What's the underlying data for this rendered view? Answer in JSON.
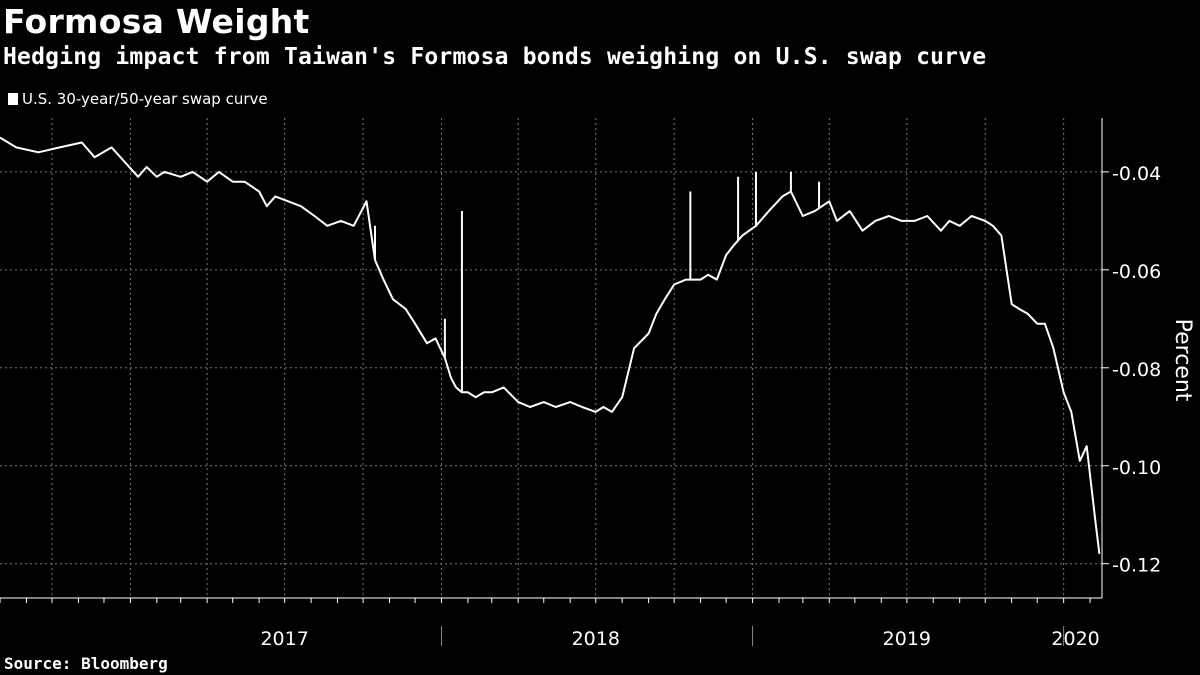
{
  "header": {
    "title": "Formosa Weight",
    "subtitle": "Hedging impact from Taiwan's Formosa bonds weighing on U.S. swap curve"
  },
  "source": "Source: Bloomberg",
  "colors": {
    "background": "#000000",
    "line": "#ffffff",
    "grid": "#777777"
  },
  "chart_data": {
    "type": "line",
    "title": "Formosa Weight",
    "subtitle": "Hedging impact from Taiwan's Formosa bonds weighing on U.S. swap curve",
    "xlabel": "",
    "ylabel": "Percent",
    "legend": "top-left",
    "grid": true,
    "ylim": [
      -0.127,
      -0.029
    ],
    "y_ticks": [
      -0.04,
      -0.06,
      -0.08,
      -0.1,
      -0.12
    ],
    "y_tick_labels": [
      "-0.04",
      "-0.06",
      "-0.08",
      "-0.10",
      "-0.12"
    ],
    "x_range": [
      "2016-08-01",
      "2020-02-15"
    ],
    "year_labels": [
      {
        "label": "2017",
        "x": "2017-07-01"
      },
      {
        "label": "2018",
        "x": "2018-07-01"
      },
      {
        "label": "2019",
        "x": "2019-07-01"
      },
      {
        "label": "2020",
        "x": "2020-01-15"
      }
    ],
    "year_separators": [
      "2018-01-01",
      "2019-01-01",
      "2020-01-01"
    ],
    "series": [
      {
        "name": "U.S. 30-year/50-year swap curve",
        "x": [
          "2016-08-01",
          "2016-08-20",
          "2016-09-15",
          "2016-10-10",
          "2016-11-05",
          "2016-11-20",
          "2016-12-10",
          "2017-01-10",
          "2017-01-20",
          "2017-02-01",
          "2017-02-10",
          "2017-03-01",
          "2017-03-15",
          "2017-04-01",
          "2017-04-15",
          "2017-05-01",
          "2017-05-15",
          "2017-06-01",
          "2017-06-10",
          "2017-06-20",
          "2017-07-05",
          "2017-07-20",
          "2017-08-05",
          "2017-08-20",
          "2017-09-05",
          "2017-09-20",
          "2017-10-05",
          "2017-10-15",
          "2017-10-25",
          "2017-11-05",
          "2017-11-20",
          "2017-12-01",
          "2017-12-15",
          "2017-12-25",
          "2018-01-05",
          "2018-01-12",
          "2018-01-18",
          "2018-01-25",
          "2018-02-01",
          "2018-02-10",
          "2018-02-20",
          "2018-03-01",
          "2018-03-15",
          "2018-04-01",
          "2018-04-15",
          "2018-05-01",
          "2018-05-15",
          "2018-06-01",
          "2018-06-15",
          "2018-07-01",
          "2018-07-10",
          "2018-07-20",
          "2018-08-01",
          "2018-08-15",
          "2018-09-01",
          "2018-09-10",
          "2018-09-20",
          "2018-10-01",
          "2018-10-15",
          "2018-11-01",
          "2018-11-10",
          "2018-11-20",
          "2018-12-01",
          "2018-12-10",
          "2018-12-20",
          "2019-01-05",
          "2019-01-20",
          "2019-02-05",
          "2019-02-15",
          "2019-03-01",
          "2019-03-15",
          "2019-04-01",
          "2019-04-10",
          "2019-04-25",
          "2019-05-10",
          "2019-05-25",
          "2019-06-10",
          "2019-06-25",
          "2019-07-10",
          "2019-07-25",
          "2019-08-10",
          "2019-08-20",
          "2019-09-01",
          "2019-09-15",
          "2019-10-01",
          "2019-10-10",
          "2019-10-20",
          "2019-11-01",
          "2019-11-10",
          "2019-11-20",
          "2019-12-01",
          "2019-12-10",
          "2019-12-20",
          "2020-01-01",
          "2020-01-10",
          "2020-01-20",
          "2020-01-28",
          "2020-02-03",
          "2020-02-07",
          "2020-02-12"
        ],
        "y": [
          -0.033,
          -0.035,
          -0.036,
          -0.035,
          -0.034,
          -0.037,
          -0.035,
          -0.041,
          -0.039,
          -0.041,
          -0.04,
          -0.041,
          -0.04,
          -0.042,
          -0.04,
          -0.042,
          -0.042,
          -0.044,
          -0.047,
          -0.045,
          -0.046,
          -0.047,
          -0.049,
          -0.051,
          -0.05,
          -0.051,
          -0.046,
          -0.058,
          -0.062,
          -0.066,
          -0.068,
          -0.071,
          -0.075,
          -0.074,
          -0.078,
          -0.082,
          -0.084,
          -0.085,
          -0.085,
          -0.086,
          -0.085,
          -0.085,
          -0.084,
          -0.087,
          -0.088,
          -0.087,
          -0.088,
          -0.087,
          -0.088,
          -0.089,
          -0.088,
          -0.089,
          -0.086,
          -0.076,
          -0.073,
          -0.069,
          -0.066,
          -0.063,
          -0.062,
          -0.062,
          -0.061,
          -0.062,
          -0.057,
          -0.055,
          -0.053,
          -0.051,
          -0.048,
          -0.045,
          -0.044,
          -0.049,
          -0.048,
          -0.046,
          -0.05,
          -0.048,
          -0.052,
          -0.05,
          -0.049,
          -0.05,
          -0.05,
          -0.049,
          -0.052,
          -0.05,
          -0.051,
          -0.049,
          -0.05,
          -0.051,
          -0.053,
          -0.067,
          -0.068,
          -0.069,
          -0.071,
          -0.071,
          -0.076,
          -0.085,
          -0.089,
          -0.099,
          -0.096,
          -0.105,
          -0.111,
          -0.118
        ]
      }
    ],
    "spikes": [
      {
        "x": "2017-10-15",
        "y": -0.051
      },
      {
        "x": "2018-01-05",
        "y": -0.07
      },
      {
        "x": "2018-01-25",
        "y": -0.048
      },
      {
        "x": "2018-10-20",
        "y": -0.044
      },
      {
        "x": "2018-12-15",
        "y": -0.041
      },
      {
        "x": "2019-01-05",
        "y": -0.04
      },
      {
        "x": "2019-02-15",
        "y": -0.04
      },
      {
        "x": "2019-03-20",
        "y": -0.042
      }
    ]
  }
}
